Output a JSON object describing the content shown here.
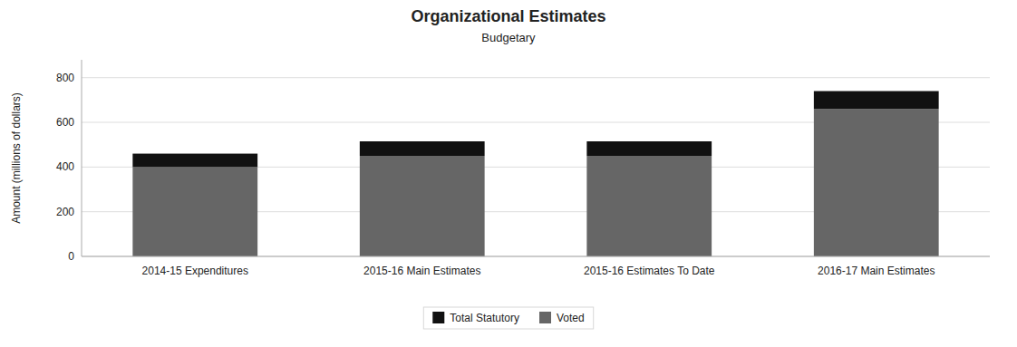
{
  "chart_data": {
    "type": "bar",
    "title": "Organizational Estimates",
    "subtitle": "Budgetary",
    "categories": [
      "2014-15 Expenditures",
      "2015-16 Main Estimates",
      "2015-16 Estimates To Date",
      "2016-17 Main Estimates"
    ],
    "series": [
      {
        "name": "Voted",
        "color": "#666666",
        "values": [
          400,
          450,
          450,
          660
        ]
      },
      {
        "name": "Total Statutory",
        "color": "#111111",
        "values": [
          60,
          65,
          65,
          80
        ]
      }
    ],
    "stacked": true,
    "ylabel": "Amount (millions of dollars)",
    "ylim": [
      0,
      880
    ],
    "yticks": [
      0,
      200,
      400,
      600,
      800
    ],
    "grid": true,
    "legend": "bottom"
  }
}
